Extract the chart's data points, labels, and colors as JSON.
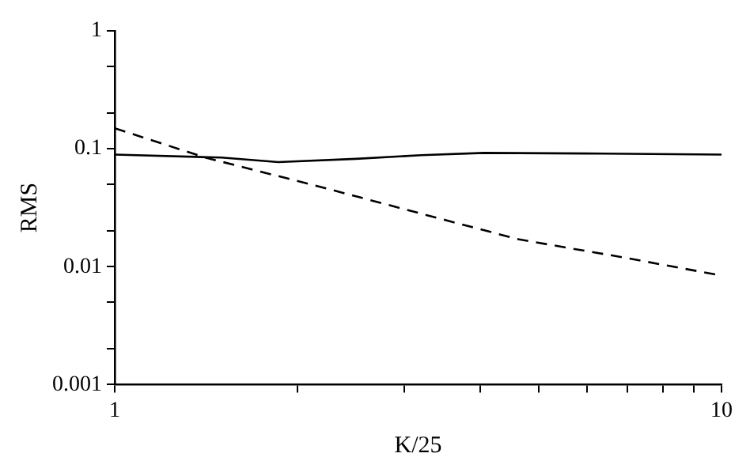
{
  "chart_data": {
    "type": "line",
    "xlabel": "K/25",
    "ylabel": "RMS",
    "log": "xy",
    "grid": false,
    "legend": false,
    "marker": "none",
    "xlim": [
      1,
      10
    ],
    "ylim": [
      0.001,
      1
    ],
    "xticks": [
      1,
      {
        "value": 2,
        "label": null
      },
      {
        "value": 3,
        "label": null
      },
      {
        "value": 4,
        "label": null
      },
      {
        "value": 5,
        "label": null
      },
      {
        "value": 6,
        "label": null
      },
      {
        "value": 7,
        "label": null
      },
      {
        "value": 8,
        "label": null
      },
      {
        "value": 9,
        "label": null
      },
      10
    ],
    "yticks": [
      0.001,
      {
        "value": 0.002,
        "label": null
      },
      {
        "value": 0.005,
        "label": null
      },
      0.01,
      {
        "value": 0.02,
        "label": null
      },
      {
        "value": 0.05,
        "label": null
      },
      0.1,
      {
        "value": 0.2,
        "label": null
      },
      {
        "value": 0.5,
        "label": null
      },
      1
    ],
    "series": [
      {
        "color": "#000000",
        "line_style": "solid",
        "x": [
          1,
          1.5,
          1.86,
          2.5,
          3.2,
          4.06,
          6,
          10
        ],
        "values": [
          0.089,
          0.084,
          0.077,
          0.082,
          0.088,
          0.092,
          0.091,
          0.089
        ]
      },
      {
        "color": "#000000",
        "line_style": "dashed",
        "x": [
          1,
          1.41,
          2.13,
          3.83,
          4.64,
          6.87,
          10
        ],
        "values": [
          0.149,
          0.084,
          0.049,
          0.022,
          0.017,
          0.012,
          0.0084
        ]
      }
    ]
  }
}
